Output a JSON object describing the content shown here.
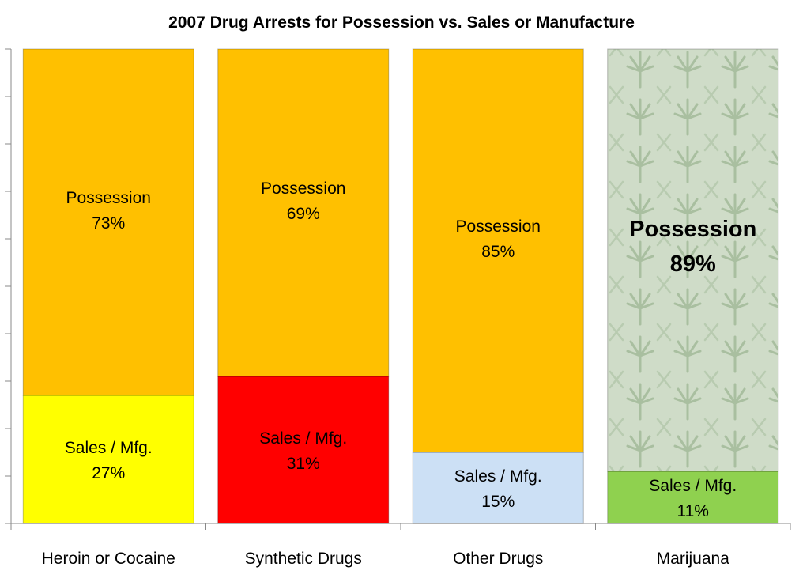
{
  "chart_data": {
    "type": "bar",
    "stacked": true,
    "title": "2007 Drug Arrests for Possession vs. Sales or Manufacture",
    "categories": [
      "Heroin or Cocaine",
      "Synthetic Drugs",
      "Other Drugs",
      "Marijuana"
    ],
    "ylim": [
      0,
      100
    ],
    "grid": false,
    "legend": "none",
    "series": [
      {
        "label": "Sales / Mfg.",
        "values": [
          27,
          31,
          15,
          11
        ],
        "colors": [
          "#ffff00",
          "#ff0000",
          "#cce0f5",
          "#8fd14f"
        ]
      },
      {
        "label": "Possession",
        "values": [
          73,
          69,
          85,
          89
        ],
        "colors": [
          "#ffc000",
          "#ffc000",
          "#ffc000",
          "#c8d8c0"
        ]
      }
    ],
    "highlight_category": "Marijuana"
  }
}
